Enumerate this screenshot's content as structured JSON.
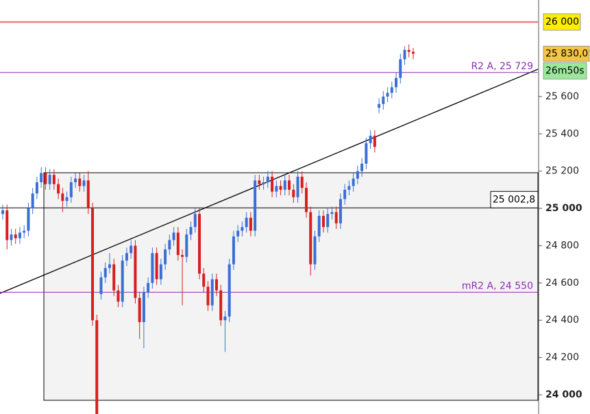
{
  "chart_data": {
    "type": "candlestick",
    "open": [
      24970,
      24990,
      24830,
      24860,
      24840,
      24870,
      24880,
      25000,
      25080,
      25140,
      25190,
      25130,
      25180,
      25130,
      25080,
      25040,
      25060,
      25140,
      25160,
      25120,
      25150,
      25000,
      24400,
      24540,
      24630,
      24680,
      24700,
      24560,
      24500,
      24720,
      24760,
      24800,
      24520,
      24390,
      24550,
      24600,
      24760,
      24620,
      24700,
      24780,
      24830,
      24870,
      24750,
      24740,
      24860,
      24900,
      24970,
      24650,
      24580,
      24480,
      24620,
      24560,
      24400,
      24420,
      24700,
      24850,
      24880,
      24900,
      24950,
      24880,
      25150,
      25130,
      25140,
      25170,
      25090,
      25120,
      25100,
      25150,
      25100,
      25060,
      25170,
      25110,
      24980,
      24700,
      24850,
      24960,
      24900,
      24970,
      24980,
      24920,
      25050,
      25100,
      25120,
      25160,
      25200,
      25240,
      25350,
      25390,
      25540,
      25560,
      25600,
      25620,
      25650,
      25700,
      25800,
      25850,
      25840
    ],
    "high": [
      25020,
      25020,
      24890,
      24890,
      24900,
      24910,
      25030,
      25110,
      25170,
      25220,
      25220,
      25210,
      25210,
      25160,
      25110,
      25090,
      25170,
      25190,
      25190,
      25180,
      25200,
      25030,
      24430,
      24660,
      24710,
      24760,
      24730,
      24590,
      24750,
      24790,
      24830,
      24830,
      24550,
      24580,
      24630,
      24790,
      24790,
      24730,
      24810,
      24860,
      24900,
      24900,
      24780,
      24890,
      24930,
      25000,
      25000,
      24680,
      24610,
      24650,
      24650,
      24590,
      24450,
      24730,
      24880,
      24910,
      24930,
      24980,
      24980,
      25180,
      25180,
      25170,
      25200,
      25200,
      25150,
      25150,
      25180,
      25180,
      25130,
      25200,
      25200,
      25140,
      25010,
      24880,
      24990,
      24990,
      25000,
      25010,
      25010,
      25080,
      25130,
      25150,
      25190,
      25230,
      25270,
      25380,
      25420,
      25420,
      25590,
      25630,
      25650,
      25680,
      25730,
      25830,
      25870,
      25880,
      25860
    ],
    "low": [
      24940,
      24780,
      24800,
      24810,
      24810,
      24840,
      24850,
      24970,
      25050,
      25110,
      25100,
      25100,
      25100,
      25050,
      24980,
      25010,
      25030,
      25110,
      25090,
      25090,
      24970,
      24370,
      23830,
      24510,
      24600,
      24650,
      24530,
      24470,
      24470,
      24690,
      24730,
      24490,
      24300,
      24250,
      24520,
      24570,
      24590,
      24590,
      24670,
      24750,
      24800,
      24720,
      24480,
      24710,
      24830,
      24870,
      24620,
      24550,
      24450,
      24450,
      24530,
      24370,
      24230,
      24390,
      24670,
      24820,
      24850,
      24870,
      24850,
      24850,
      25100,
      25100,
      25110,
      25060,
      25060,
      25070,
      25070,
      25070,
      25030,
      25030,
      25080,
      24950,
      24640,
      24670,
      24820,
      24870,
      24870,
      24940,
      24890,
      24890,
      25020,
      25070,
      25090,
      25130,
      25170,
      25210,
      25320,
      25300,
      25510,
      25530,
      25570,
      25590,
      25620,
      25670,
      25770,
      25810,
      25800
    ],
    "close": [
      24990,
      24830,
      24860,
      24840,
      24870,
      24880,
      25000,
      25080,
      25140,
      25190,
      25130,
      25180,
      25130,
      25080,
      25040,
      25060,
      25140,
      25160,
      25120,
      25150,
      25000,
      24400,
      23880,
      24630,
      24680,
      24700,
      24560,
      24500,
      24720,
      24760,
      24800,
      24520,
      24390,
      24550,
      24600,
      24760,
      24620,
      24700,
      24780,
      24830,
      24870,
      24750,
      24740,
      24860,
      24900,
      24970,
      24650,
      24580,
      24480,
      24620,
      24560,
      24400,
      24420,
      24700,
      24850,
      24880,
      24900,
      24950,
      24880,
      25150,
      25130,
      25140,
      25170,
      25090,
      25120,
      25100,
      25150,
      25100,
      25060,
      25170,
      25110,
      24980,
      24700,
      24850,
      24960,
      24900,
      24970,
      24980,
      24920,
      25050,
      25100,
      25120,
      25160,
      25200,
      25240,
      25350,
      25390,
      25330,
      25560,
      25600,
      25620,
      25650,
      25700,
      25800,
      25850,
      25840,
      25830
    ],
    "up_color": "#3a6fd6",
    "down_color": "#d81e1e",
    "ylim": [
      23897,
      26118
    ],
    "yticks": [
      {
        "value": 24000,
        "label": "24 000",
        "bold": true
      },
      {
        "value": 24200,
        "label": "24 200"
      },
      {
        "value": 24400,
        "label": "24 400"
      },
      {
        "value": 24600,
        "label": "24 600"
      },
      {
        "value": 24800,
        "label": "24 800"
      },
      {
        "value": 25000,
        "label": "25 000",
        "bold": true
      },
      {
        "value": 25200,
        "label": "25 200"
      },
      {
        "value": 25400,
        "label": "25 400"
      },
      {
        "value": 25600,
        "label": "25 600"
      }
    ],
    "levels": [
      {
        "label": "R2 A, 25 729",
        "value": 25729,
        "color": "#8b2fb0"
      },
      {
        "label": "mR2 A, 24 550",
        "value": 24550,
        "color": "#8b2fb0"
      }
    ],
    "hline": {
      "label": "25 002,8",
      "value": 25002.8,
      "color": "#000000"
    },
    "resistance": {
      "label": "26 000",
      "value": 26000,
      "color": "#f08080"
    },
    "last_price": {
      "label": "25 830,0",
      "value": 25830
    },
    "countdown": "26m50s"
  }
}
